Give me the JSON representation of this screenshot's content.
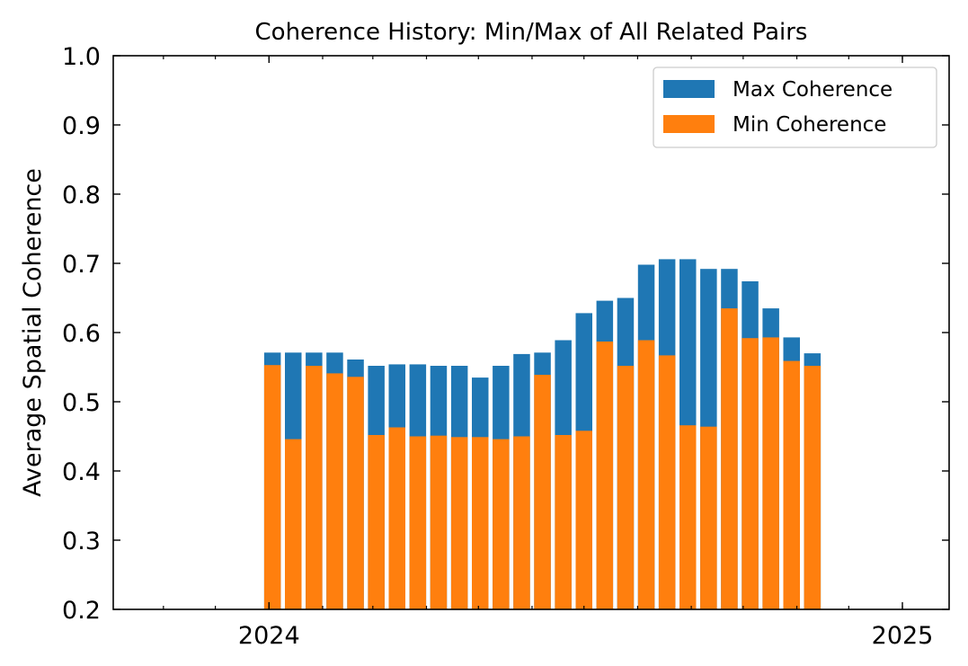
{
  "chart_data": {
    "type": "bar",
    "title": "Coherence History: Min/Max of All Related Pairs",
    "xlabel": "",
    "ylabel": "Average Spatial Coherence",
    "ylim": [
      0.2,
      1.0
    ],
    "yticks": [
      "0.2",
      "0.3",
      "0.4",
      "0.5",
      "0.6",
      "0.7",
      "0.8",
      "0.9",
      "1.0"
    ],
    "xlim": [
      "2023-10-03",
      "2025-01-28"
    ],
    "xticks": [
      {
        "date": "2024-01-01",
        "label": "2024"
      },
      {
        "date": "2025-01-01",
        "label": "2025"
      }
    ],
    "grid": false,
    "legend_position": "top-right",
    "x": [
      "2024-01-03",
      "2024-01-15",
      "2024-01-27",
      "2024-02-08",
      "2024-02-20",
      "2024-03-03",
      "2024-03-15",
      "2024-03-27",
      "2024-04-08",
      "2024-04-20",
      "2024-05-02",
      "2024-05-14",
      "2024-05-26",
      "2024-06-07",
      "2024-06-19",
      "2024-07-01",
      "2024-07-13",
      "2024-07-25",
      "2024-08-06",
      "2024-08-18",
      "2024-08-30",
      "2024-09-11",
      "2024-09-23",
      "2024-10-05",
      "2024-10-17",
      "2024-10-29",
      "2024-11-10"
    ],
    "series": [
      {
        "name": "Max Coherence",
        "color": "#1f77b4",
        "values": [
          0.571,
          0.571,
          0.571,
          0.571,
          0.561,
          0.552,
          0.554,
          0.554,
          0.552,
          0.552,
          0.535,
          0.552,
          0.569,
          0.571,
          0.589,
          0.628,
          0.646,
          0.65,
          0.698,
          0.706,
          0.706,
          0.692,
          0.692,
          0.674,
          0.635,
          0.593,
          0.57
        ]
      },
      {
        "name": "Min Coherence",
        "color": "#ff7f0e",
        "values": [
          0.553,
          0.446,
          0.552,
          0.541,
          0.536,
          0.452,
          0.463,
          0.45,
          0.451,
          0.449,
          0.449,
          0.446,
          0.45,
          0.539,
          0.452,
          0.458,
          0.587,
          0.552,
          0.589,
          0.567,
          0.466,
          0.464,
          0.635,
          0.592,
          0.593,
          0.559,
          0.552
        ]
      }
    ]
  }
}
